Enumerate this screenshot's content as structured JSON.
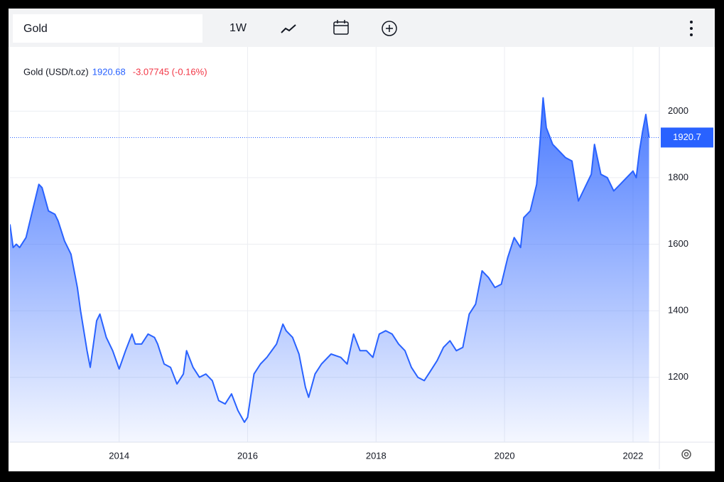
{
  "toolbar": {
    "symbol": "Gold",
    "interval": "1W"
  },
  "chart_data": {
    "type": "area",
    "legend": {
      "name": "Gold (USD/t.oz)",
      "price": 1920.68,
      "change": "-3.07745 (-0.16%)"
    },
    "last_price_tag": {
      "value": 1920.68,
      "label": "1920.7"
    },
    "color": "#2962ff",
    "x": [
      2012.3,
      2012.35,
      2012.4,
      2012.45,
      2012.55,
      2012.65,
      2012.75,
      2012.8,
      2012.9,
      2013.0,
      2013.05,
      2013.15,
      2013.25,
      2013.35,
      2013.4,
      2013.5,
      2013.55,
      2013.65,
      2013.7,
      2013.8,
      2013.9,
      2014.0,
      2014.1,
      2014.2,
      2014.25,
      2014.35,
      2014.45,
      2014.55,
      2014.6,
      2014.7,
      2014.8,
      2014.9,
      2015.0,
      2015.05,
      2015.15,
      2015.25,
      2015.35,
      2015.45,
      2015.55,
      2015.65,
      2015.75,
      2015.85,
      2015.95,
      2016.0,
      2016.1,
      2016.2,
      2016.3,
      2016.45,
      2016.55,
      2016.6,
      2016.7,
      2016.8,
      2016.9,
      2016.95,
      2017.05,
      2017.15,
      2017.3,
      2017.45,
      2017.55,
      2017.65,
      2017.75,
      2017.85,
      2017.95,
      2018.05,
      2018.15,
      2018.25,
      2018.35,
      2018.45,
      2018.55,
      2018.65,
      2018.75,
      2018.85,
      2018.95,
      2019.05,
      2019.15,
      2019.25,
      2019.35,
      2019.45,
      2019.55,
      2019.65,
      2019.75,
      2019.85,
      2019.95,
      2020.05,
      2020.15,
      2020.25,
      2020.3,
      2020.4,
      2020.5,
      2020.55,
      2020.6,
      2020.65,
      2020.75,
      2020.85,
      2020.95,
      2021.05,
      2021.15,
      2021.25,
      2021.35,
      2021.4,
      2021.5,
      2021.6,
      2021.7,
      2021.8,
      2021.9,
      2022.0,
      2022.05,
      2022.1,
      2022.15,
      2022.2,
      2022.25
    ],
    "values": [
      1660,
      1590,
      1600,
      1590,
      1620,
      1700,
      1780,
      1770,
      1700,
      1690,
      1670,
      1610,
      1570,
      1470,
      1400,
      1280,
      1230,
      1370,
      1390,
      1320,
      1280,
      1225,
      1280,
      1330,
      1300,
      1300,
      1330,
      1320,
      1300,
      1240,
      1230,
      1180,
      1210,
      1280,
      1230,
      1200,
      1210,
      1190,
      1130,
      1120,
      1150,
      1100,
      1065,
      1080,
      1210,
      1240,
      1260,
      1300,
      1360,
      1340,
      1320,
      1270,
      1170,
      1140,
      1210,
      1240,
      1270,
      1260,
      1240,
      1330,
      1280,
      1280,
      1260,
      1330,
      1340,
      1330,
      1300,
      1280,
      1230,
      1200,
      1190,
      1220,
      1250,
      1290,
      1310,
      1280,
      1290,
      1390,
      1420,
      1520,
      1500,
      1470,
      1480,
      1560,
      1620,
      1590,
      1680,
      1700,
      1780,
      1900,
      2040,
      1950,
      1900,
      1880,
      1860,
      1850,
      1730,
      1770,
      1810,
      1900,
      1810,
      1800,
      1760,
      1780,
      1800,
      1820,
      1800,
      1880,
      1940,
      1990,
      1920.68
    ],
    "xlim": [
      2012.3,
      2022.41
    ],
    "xticks": [
      2014,
      2016,
      2018,
      2020,
      2022
    ],
    "ylim": [
      1005,
      2193
    ],
    "yticks": [
      1200,
      1400,
      1600,
      1800,
      2000
    ],
    "grid": true
  }
}
